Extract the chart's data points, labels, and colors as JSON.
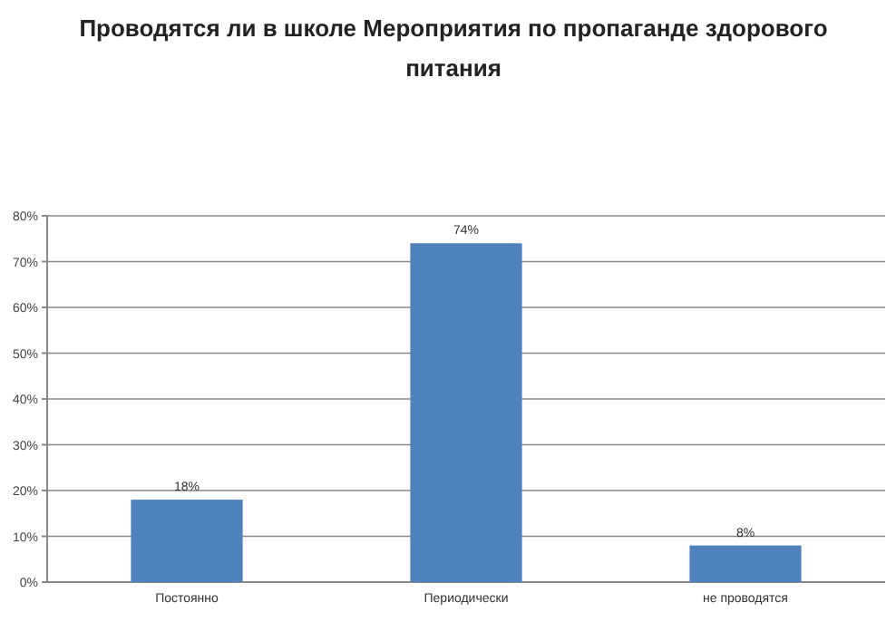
{
  "chart_data": {
    "type": "bar",
    "title": "Проводятся ли в школе Мероприятия по пропаганде здорового питания",
    "categories": [
      "Постоянно",
      "Периодически",
      "не проводятся"
    ],
    "values": [
      18,
      74,
      8
    ],
    "color": "#4f81bd",
    "data_labels": true,
    "value_labels": [
      "18%",
      "74%",
      "8%"
    ],
    "ylim": [
      0,
      80
    ],
    "yticks": [
      {
        "value": 0,
        "label": "0%"
      },
      {
        "value": 10,
        "label": "10%"
      },
      {
        "value": 20,
        "label": "20%"
      },
      {
        "value": 30,
        "label": "30%"
      },
      {
        "value": 40,
        "label": "40%"
      },
      {
        "value": 50,
        "label": "50%"
      },
      {
        "value": 60,
        "label": "60%"
      },
      {
        "value": 70,
        "label": "70%"
      },
      {
        "value": 80,
        "label": "80%"
      }
    ],
    "grid": "y"
  }
}
